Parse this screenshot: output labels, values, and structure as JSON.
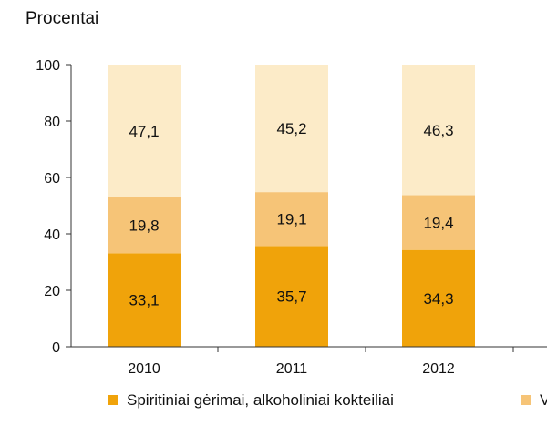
{
  "chart_data": {
    "type": "bar",
    "stacked": true,
    "ylabel": "Procentai",
    "ylim": [
      0,
      100
    ],
    "yticks": [
      0,
      20,
      40,
      60,
      80,
      100
    ],
    "grid": false,
    "categories": [
      "2010",
      "2011",
      "2012"
    ],
    "series": [
      {
        "name": "Spiritiniai gėrimai, alkoholiniai kokteiliai",
        "values": [
          33.1,
          35.7,
          34.3
        ],
        "labels": [
          "33,1",
          "35,7",
          "34,3"
        ],
        "color": "#F0A30A"
      },
      {
        "name": "V",
        "values": [
          19.8,
          19.1,
          19.4
        ],
        "labels": [
          "19,8",
          "19,1",
          "19,4"
        ],
        "color": "#F6C477"
      },
      {
        "name": "",
        "values": [
          47.1,
          45.2,
          46.3
        ],
        "labels": [
          "47,1",
          "45,2",
          "46,3"
        ],
        "color": "#FCEBC8"
      }
    ],
    "legend_position": "bottom"
  }
}
